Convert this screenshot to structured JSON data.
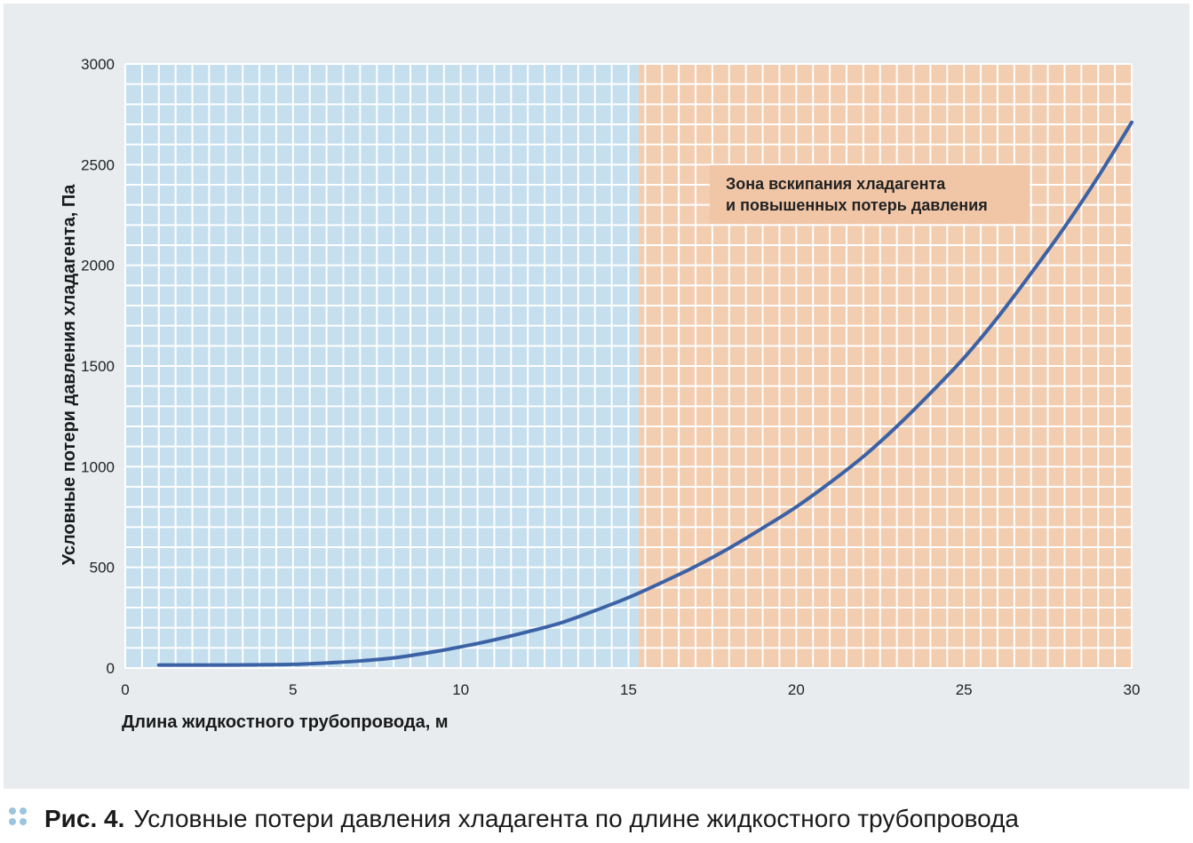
{
  "chart_data": {
    "type": "line",
    "xlabel": "Длина жидкостного трубопровода, м",
    "ylabel": "Условные потери давления хладагента, Па",
    "xlim": [
      0,
      30
    ],
    "ylim": [
      0,
      3000
    ],
    "x_ticks": [
      "0",
      "5",
      "10",
      "15",
      "20",
      "25",
      "30"
    ],
    "y_ticks": [
      "0",
      "500",
      "1000",
      "1500",
      "2000",
      "2500",
      "3000"
    ],
    "grid": true,
    "regions": [
      {
        "x_range": [
          0,
          15.3
        ],
        "color": "#c5dfee"
      },
      {
        "x_range": [
          15.3,
          30
        ],
        "color": "#f2cdb0",
        "label_lines": [
          "Зона вскипания хладагента",
          "и повышенных потерь давления"
        ]
      }
    ],
    "series": [
      {
        "color": "#3c62a6",
        "x": [
          1,
          2,
          3,
          4,
          5,
          6,
          7,
          8,
          9,
          10,
          11,
          12,
          13,
          14,
          15,
          16,
          17,
          18,
          19,
          20,
          21,
          22,
          23,
          24,
          25,
          26,
          27,
          28,
          29,
          30
        ],
        "y": [
          15,
          15,
          15,
          16,
          18,
          25,
          35,
          50,
          75,
          105,
          140,
          180,
          225,
          285,
          350,
          425,
          505,
          595,
          695,
          800,
          920,
          1050,
          1200,
          1365,
          1540,
          1740,
          1960,
          2190,
          2440,
          2710
        ]
      }
    ]
  },
  "caption": {
    "number": "Рис. 4.",
    "text": "Условные потери давления хладагента по длине жидкостного трубопровода",
    "bullet_color": "#9bc4de"
  }
}
